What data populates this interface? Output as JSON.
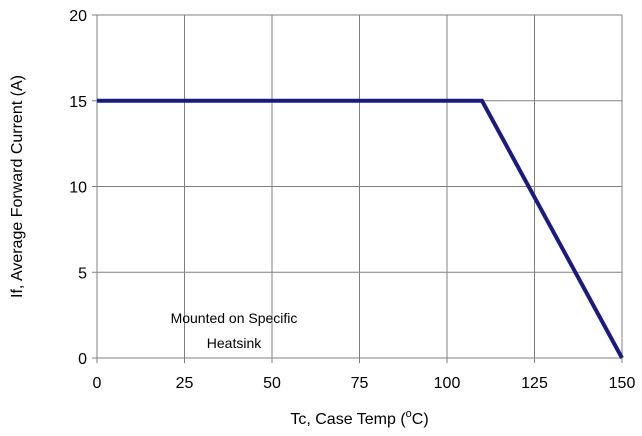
{
  "chart_data": {
    "type": "line",
    "xlabel_main": "Tc, Case Temp (",
    "xlabel_sup": "o",
    "xlabel_end": "C)",
    "ylabel": "If, Average Forward Current (A)",
    "xlim": [
      0,
      150
    ],
    "ylim": [
      0,
      20
    ],
    "x_ticks": [
      "0",
      "25",
      "50",
      "75",
      "100",
      "125",
      "150"
    ],
    "y_ticks": [
      "0",
      "5",
      "10",
      "15",
      "20"
    ],
    "grid": true,
    "series": [
      {
        "color": "#1a1a80",
        "x": [
          0,
          110,
          150
        ],
        "y": [
          15,
          15,
          0
        ]
      }
    ],
    "annotations": [
      "Mounted on Specific",
      "Heatsink"
    ]
  }
}
